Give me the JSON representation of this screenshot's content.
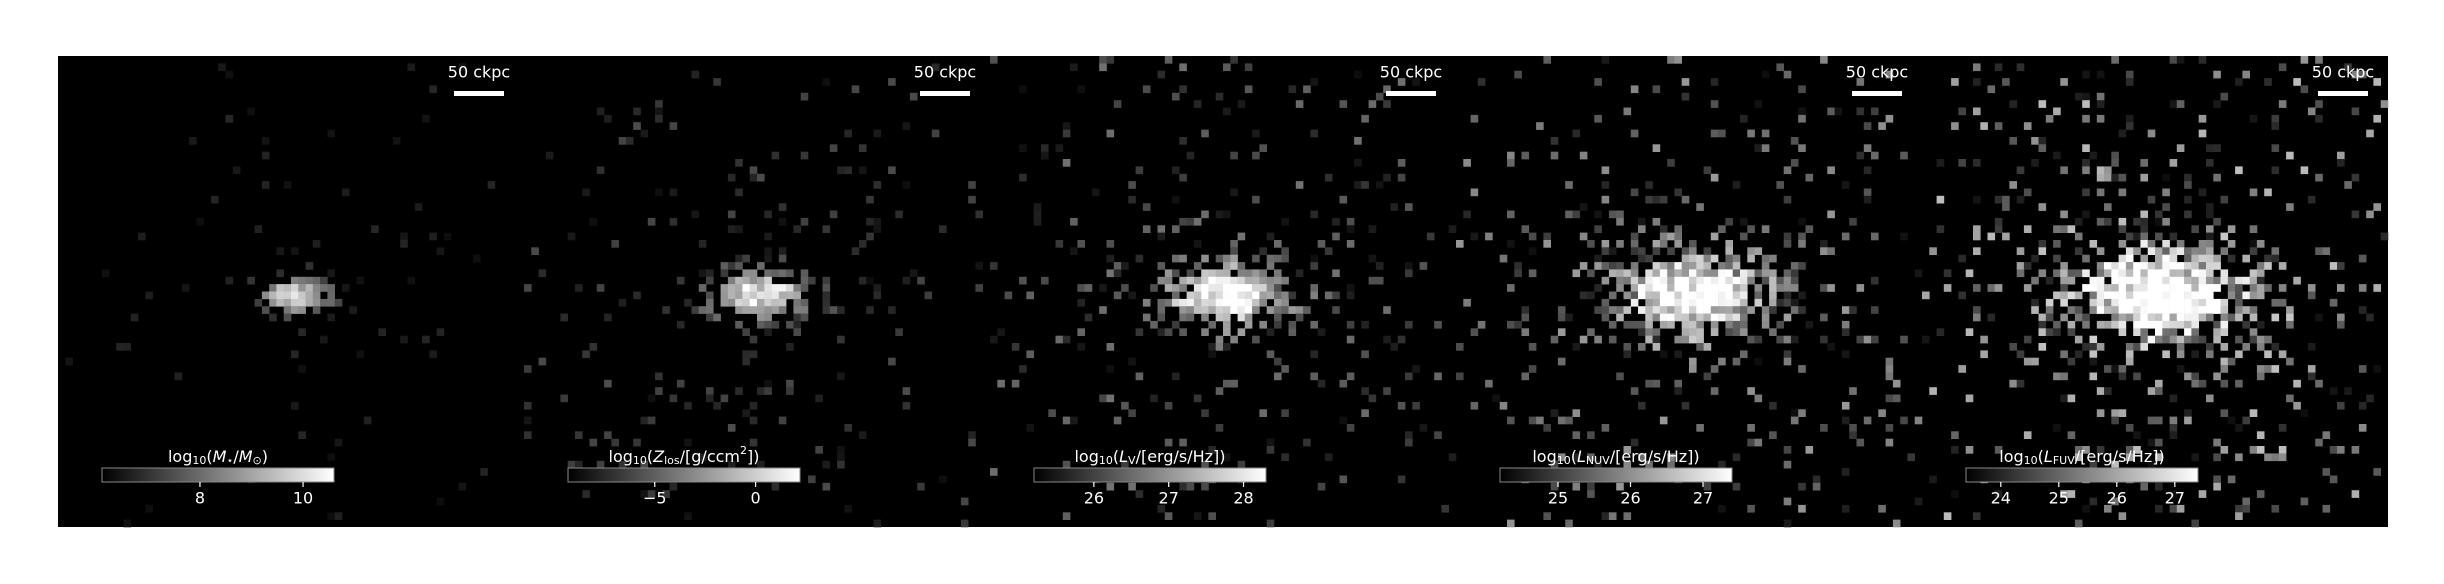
{
  "panels": [
    {
      "scale_bar": "50 ckpc",
      "colorbar": {
        "label_parts": [
          {
            "text": "log",
            "style": "n"
          },
          {
            "text": "10",
            "style": "sub"
          },
          {
            "text": "(",
            "style": "n"
          },
          {
            "text": "M",
            "style": "it"
          },
          {
            "text": "⋆",
            "style": "sub"
          },
          {
            "text": "/",
            "style": "n"
          },
          {
            "text": "M",
            "style": "it"
          },
          {
            "text": "⊙",
            "style": "sub"
          },
          {
            "text": ")",
            "style": "n"
          }
        ],
        "clim": [
          6.1,
          10.6
        ],
        "ticks": [
          8,
          10
        ]
      }
    },
    {
      "scale_bar": "50 ckpc",
      "colorbar": {
        "label_parts": [
          {
            "text": "log",
            "style": "n"
          },
          {
            "text": "10",
            "style": "sub"
          },
          {
            "text": "(",
            "style": "n"
          },
          {
            "text": "Z",
            "style": "it"
          },
          {
            "text": "los",
            "style": "sub"
          },
          {
            "text": "/[g/ccm",
            "style": "n"
          },
          {
            "text": "2",
            "style": "sup"
          },
          {
            "text": "])",
            "style": "n"
          }
        ],
        "clim": [
          -9.3,
          2.2
        ],
        "ticks": [
          {
            "value": -5,
            "label": "−5"
          },
          0
        ]
      }
    },
    {
      "scale_bar": "50 ckpc",
      "colorbar": {
        "label_parts": [
          {
            "text": "log",
            "style": "n"
          },
          {
            "text": "10",
            "style": "sub"
          },
          {
            "text": "(",
            "style": "n"
          },
          {
            "text": "L",
            "style": "it"
          },
          {
            "text": "V",
            "style": "sub"
          },
          {
            "text": "/[erg/s/Hz])",
            "style": "n"
          }
        ],
        "clim": [
          25.2,
          28.3
        ],
        "ticks": [
          26,
          27,
          28
        ]
      }
    },
    {
      "scale_bar": "50 ckpc",
      "colorbar": {
        "label_parts": [
          {
            "text": "log",
            "style": "n"
          },
          {
            "text": "10",
            "style": "sub"
          },
          {
            "text": "(",
            "style": "n"
          },
          {
            "text": "L",
            "style": "it"
          },
          {
            "text": "NUV",
            "style": "sub"
          },
          {
            "text": "/[erg/s/Hz])",
            "style": "n"
          }
        ],
        "clim": [
          24.2,
          27.4
        ],
        "ticks": [
          25,
          26,
          27
        ]
      }
    },
    {
      "scale_bar": "50 ckpc",
      "colorbar": {
        "label_parts": [
          {
            "text": "log",
            "style": "n"
          },
          {
            "text": "10",
            "style": "sub"
          },
          {
            "text": "(",
            "style": "n"
          },
          {
            "text": "L",
            "style": "it"
          },
          {
            "text": "FUV",
            "style": "sub"
          },
          {
            "text": "/[erg/s/Hz])",
            "style": "n"
          }
        ],
        "clim": [
          23.4,
          27.4
        ],
        "ticks": [
          24,
          25,
          26,
          27
        ]
      }
    }
  ]
}
